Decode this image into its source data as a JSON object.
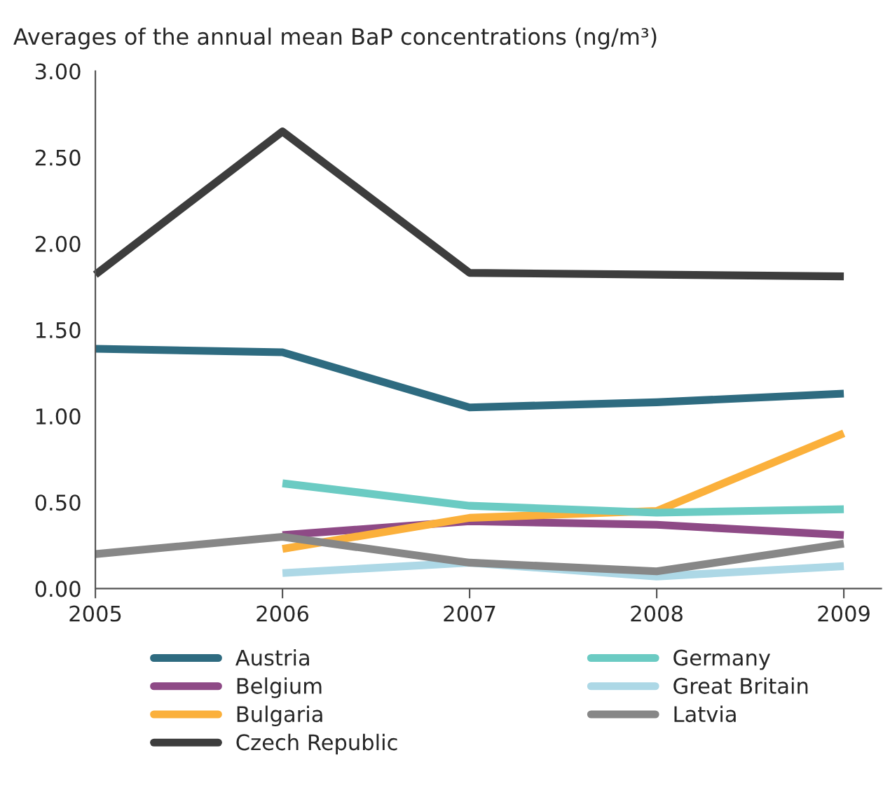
{
  "chart_data": {
    "type": "line",
    "title": "Averages of the annual mean BaP concentrations (ng/m³)",
    "x": [
      2005,
      2006,
      2007,
      2008,
      2009
    ],
    "xlim": [
      2005,
      2009.2
    ],
    "xticks": [
      2005,
      2006,
      2007,
      2008,
      2009
    ],
    "ylim": [
      0,
      3
    ],
    "yticks": [
      {
        "value": 0,
        "label": "0.00"
      },
      {
        "value": 0.5,
        "label": "0.50"
      },
      {
        "value": 1,
        "label": "1.00"
      },
      {
        "value": 1.5,
        "label": "1.50"
      },
      {
        "value": 2,
        "label": "2.00"
      },
      {
        "value": 2.5,
        "label": "2.50"
      },
      {
        "value": 3,
        "label": "3.00"
      }
    ],
    "grid": false,
    "legend": "bottom",
    "marker": "none",
    "line_style": "solid",
    "series": [
      {
        "name": "Austria",
        "color": "#2e6b80",
        "values": [
          1.39,
          1.37,
          1.05,
          1.08,
          1.13
        ]
      },
      {
        "name": "Belgium",
        "color": "#8e4a86",
        "values": [
          null,
          0.31,
          0.39,
          0.37,
          0.31
        ]
      },
      {
        "name": "Bulgaria",
        "color": "#fbb03b",
        "values": [
          null,
          0.23,
          0.41,
          0.45,
          0.9
        ]
      },
      {
        "name": "Czech Republic",
        "color": "#3d3d3d",
        "values": [
          1.82,
          2.65,
          1.83,
          1.82,
          1.81
        ]
      },
      {
        "name": "Germany",
        "color": "#6bcbc3",
        "values": [
          null,
          0.61,
          0.48,
          0.44,
          0.46
        ]
      },
      {
        "name": "Great Britain",
        "color": "#add8e6",
        "values": [
          null,
          0.09,
          0.15,
          0.07,
          0.13
        ]
      },
      {
        "name": "Latvia",
        "color": "#878787",
        "values": [
          0.2,
          0.3,
          0.15,
          0.1,
          0.26
        ]
      }
    ]
  }
}
